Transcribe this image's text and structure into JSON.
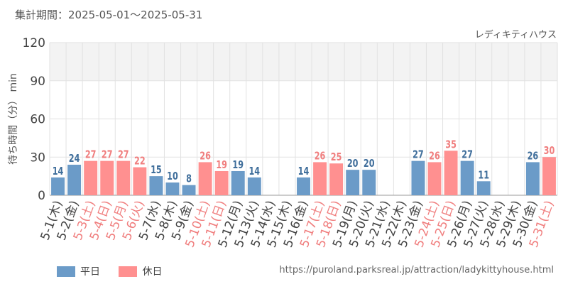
{
  "period_label": "集計期間：2025-05-01～2025-05-31",
  "attraction": "レディキティハウス",
  "source_url": "https://puroland.parksreal.jp/attraction/ladykittyhouse.html",
  "colors": {
    "weekday": "#6b9bc8",
    "holiday": "#ff9090",
    "weekday_label": "#3f6e9b",
    "holiday_label": "#f07e7e",
    "band": "#f3f3f3",
    "grid": "#e2e2e2"
  },
  "chart_data": {
    "type": "bar",
    "title": "",
    "xlabel": "",
    "ylabel": "待ち時間（分） min",
    "ylim": [
      0,
      120
    ],
    "yticks": [
      "0",
      "30",
      "60",
      "90",
      "120"
    ],
    "legend": [
      {
        "key": "weekday",
        "label": "平日"
      },
      {
        "key": "holiday",
        "label": "休日"
      }
    ],
    "categories": [
      "5-1(木)",
      "5-2(金)",
      "5-3(土)",
      "5-4(日)",
      "5-5(月)",
      "5-6(火)",
      "5-7(水)",
      "5-8(木)",
      "5-9(金)",
      "5-10(土)",
      "5-11(日)",
      "5-12(月)",
      "5-13(火)",
      "5-14(水)",
      "5-15(木)",
      "5-16(金)",
      "5-17(土)",
      "5-18(日)",
      "5-19(月)",
      "5-20(火)",
      "5-21(水)",
      "5-22(木)",
      "5-23(金)",
      "5-24(土)",
      "5-25(日)",
      "5-26(月)",
      "5-27(火)",
      "5-28(水)",
      "5-29(木)",
      "5-30(金)",
      "5-31(土)"
    ],
    "values": [
      14,
      24,
      27,
      27,
      27,
      22,
      15,
      10,
      8,
      26,
      19,
      19,
      14,
      null,
      null,
      14,
      26,
      25,
      20,
      20,
      null,
      null,
      27,
      26,
      35,
      27,
      11,
      null,
      null,
      26,
      30
    ],
    "holiday": [
      false,
      false,
      true,
      true,
      true,
      true,
      false,
      false,
      false,
      true,
      true,
      false,
      false,
      false,
      false,
      false,
      true,
      true,
      false,
      false,
      false,
      false,
      false,
      true,
      true,
      false,
      false,
      false,
      false,
      false,
      true
    ]
  }
}
